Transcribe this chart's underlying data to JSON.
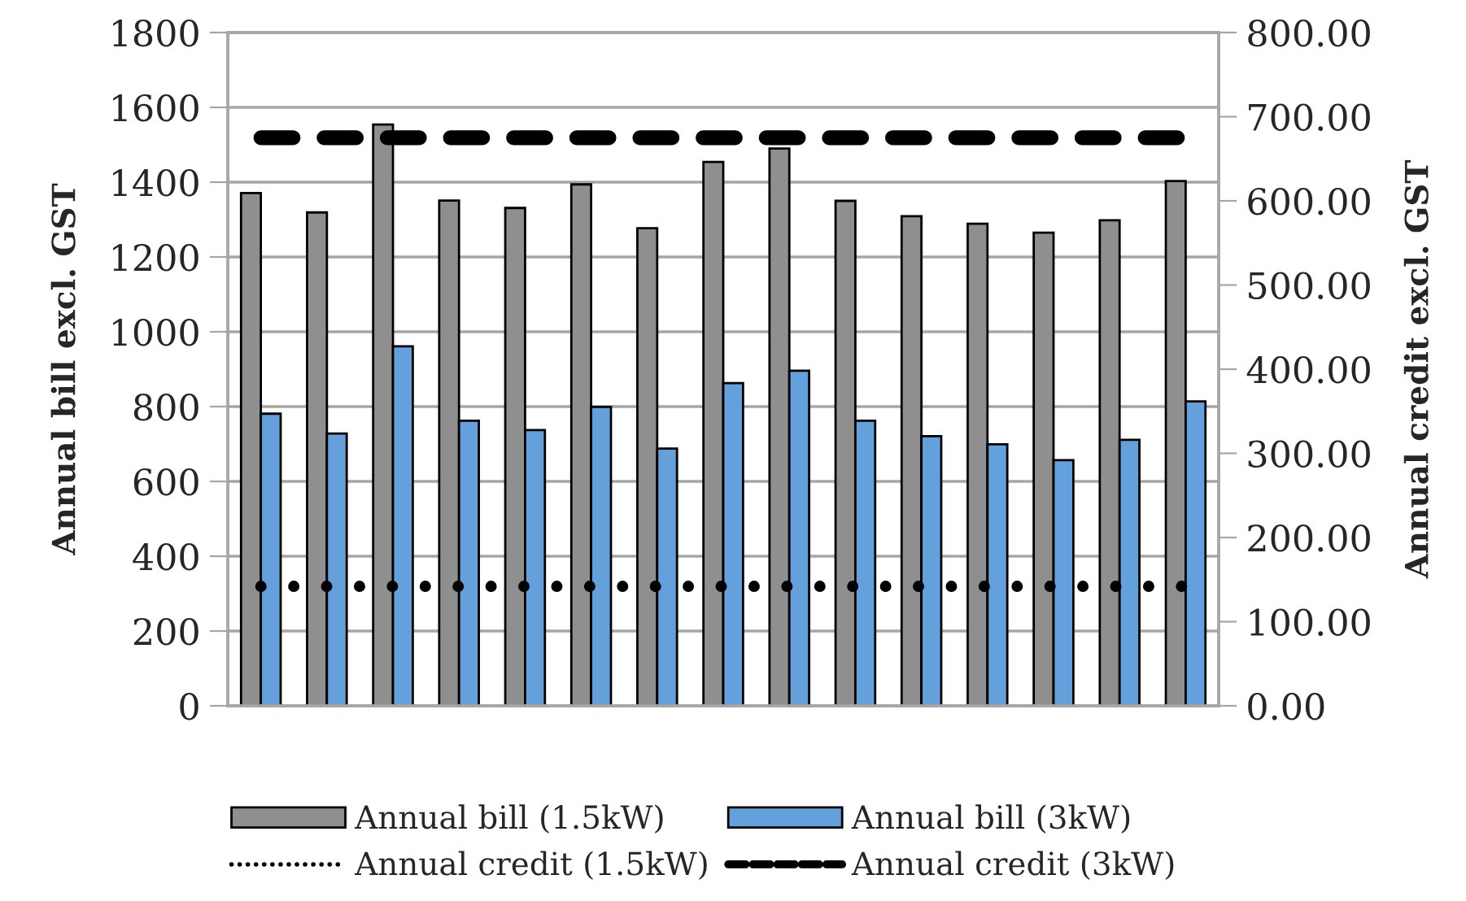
{
  "chart_data": {
    "type": "bar",
    "categories": [
      null,
      null,
      null,
      null,
      null,
      null,
      null,
      null,
      null,
      null,
      null,
      null,
      null,
      null,
      null
    ],
    "ylabel": "Annual bill excl. GST",
    "y2label": "Annual credit excl. GST",
    "ylim": [
      0,
      1800
    ],
    "yticks": [
      0,
      200,
      400,
      600,
      800,
      1000,
      1200,
      1400,
      1600,
      1800
    ],
    "y2lim": [
      0,
      800
    ],
    "y2ticks": [
      {
        "value": 0,
        "label": "0.00"
      },
      {
        "value": 100,
        "label": "100.00"
      },
      {
        "value": 200,
        "label": "200.00"
      },
      {
        "value": 300,
        "label": "300.00"
      },
      {
        "value": 400,
        "label": "400.00"
      },
      {
        "value": 500,
        "label": "500.00"
      },
      {
        "value": 600,
        "label": "600.00"
      },
      {
        "value": 700,
        "label": "700.00"
      },
      {
        "value": 800,
        "label": "800.00"
      }
    ],
    "grid": "y",
    "legend": "bottom",
    "series": [
      {
        "name": "Annual bill (1.5kW)",
        "color": "#8f8f8f",
        "values": [
          1371,
          1319,
          1554,
          1351,
          1331,
          1394,
          1277,
          1454,
          1490,
          1350,
          1309,
          1289,
          1265,
          1298,
          1403
        ]
      },
      {
        "name": "Annual bill (3kW)",
        "color": "#64a0dc",
        "values": [
          781,
          728,
          961,
          762,
          737,
          799,
          688,
          863,
          896,
          762,
          721,
          699,
          657,
          711,
          814
        ]
      },
      {
        "name": "Annual credit (1.5kW)",
        "type": "line",
        "axis": "y2",
        "color": "#000000",
        "line_style": "dotted",
        "values": [
          142,
          142,
          142,
          142,
          142,
          142,
          142,
          142,
          142,
          142,
          142,
          142,
          142,
          142,
          142
        ]
      },
      {
        "name": "Annual credit (3kW)",
        "type": "line",
        "axis": "y2",
        "color": "#000000",
        "line_style": "dashed",
        "values": [
          675,
          675,
          675,
          675,
          675,
          675,
          675,
          675,
          675,
          675,
          675,
          675,
          675,
          675,
          675
        ]
      }
    ]
  }
}
